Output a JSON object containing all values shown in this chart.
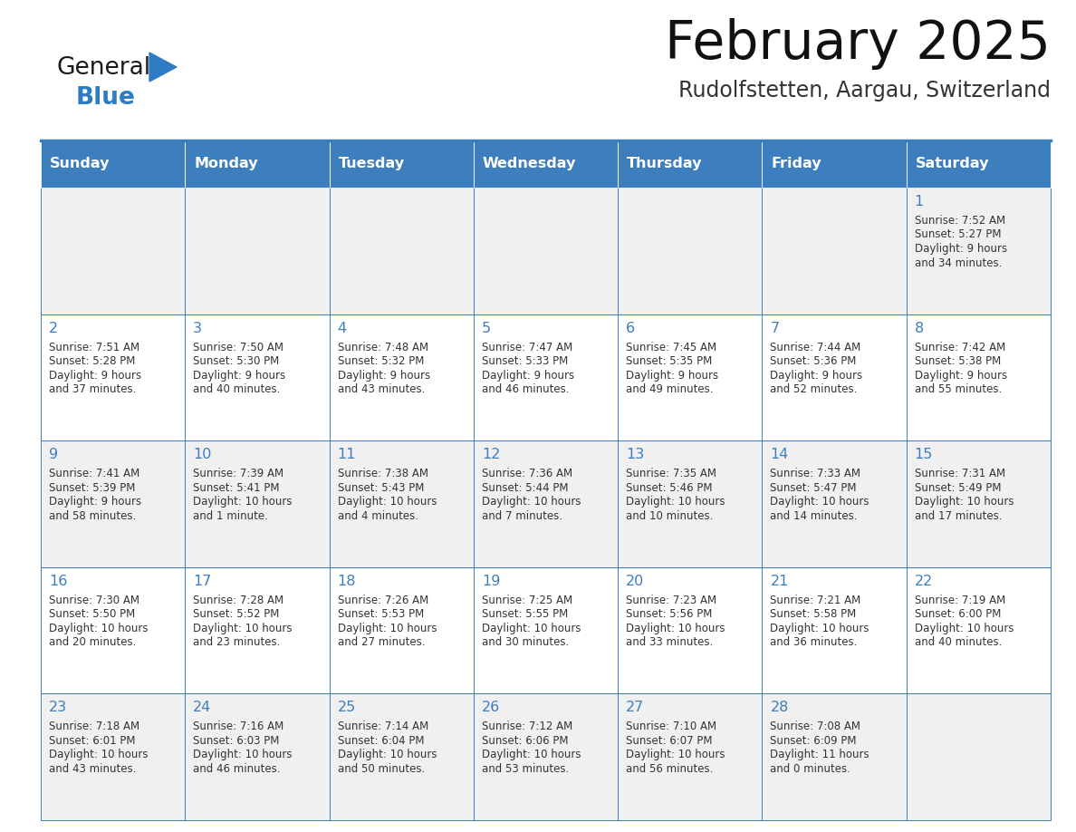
{
  "title": "February 2025",
  "subtitle": "Rudolfstetten, Aargau, Switzerland",
  "days_of_week": [
    "Sunday",
    "Monday",
    "Tuesday",
    "Wednesday",
    "Thursday",
    "Friday",
    "Saturday"
  ],
  "header_bg": "#3d7ebf",
  "header_text": "#ffffff",
  "cell_bg_gray": "#f0f0f0",
  "cell_bg_white": "#ffffff",
  "border_color": "#3d7ebf",
  "text_color": "#333333",
  "day_number_color": "#3d7ebf",
  "logo_general_color": "#1a1a1a",
  "logo_blue_color": "#2e7cc4",
  "calendar_data": [
    [
      {
        "day": null
      },
      {
        "day": null
      },
      {
        "day": null
      },
      {
        "day": null
      },
      {
        "day": null
      },
      {
        "day": null
      },
      {
        "day": 1,
        "sunrise": "7:52 AM",
        "sunset": "5:27 PM",
        "daylight": "9 hours",
        "daylight2": "and 34 minutes."
      }
    ],
    [
      {
        "day": 2,
        "sunrise": "7:51 AM",
        "sunset": "5:28 PM",
        "daylight": "9 hours",
        "daylight2": "and 37 minutes."
      },
      {
        "day": 3,
        "sunrise": "7:50 AM",
        "sunset": "5:30 PM",
        "daylight": "9 hours",
        "daylight2": "and 40 minutes."
      },
      {
        "day": 4,
        "sunrise": "7:48 AM",
        "sunset": "5:32 PM",
        "daylight": "9 hours",
        "daylight2": "and 43 minutes."
      },
      {
        "day": 5,
        "sunrise": "7:47 AM",
        "sunset": "5:33 PM",
        "daylight": "9 hours",
        "daylight2": "and 46 minutes."
      },
      {
        "day": 6,
        "sunrise": "7:45 AM",
        "sunset": "5:35 PM",
        "daylight": "9 hours",
        "daylight2": "and 49 minutes."
      },
      {
        "day": 7,
        "sunrise": "7:44 AM",
        "sunset": "5:36 PM",
        "daylight": "9 hours",
        "daylight2": "and 52 minutes."
      },
      {
        "day": 8,
        "sunrise": "7:42 AM",
        "sunset": "5:38 PM",
        "daylight": "9 hours",
        "daylight2": "and 55 minutes."
      }
    ],
    [
      {
        "day": 9,
        "sunrise": "7:41 AM",
        "sunset": "5:39 PM",
        "daylight": "9 hours",
        "daylight2": "and 58 minutes."
      },
      {
        "day": 10,
        "sunrise": "7:39 AM",
        "sunset": "5:41 PM",
        "daylight": "10 hours",
        "daylight2": "and 1 minute."
      },
      {
        "day": 11,
        "sunrise": "7:38 AM",
        "sunset": "5:43 PM",
        "daylight": "10 hours",
        "daylight2": "and 4 minutes."
      },
      {
        "day": 12,
        "sunrise": "7:36 AM",
        "sunset": "5:44 PM",
        "daylight": "10 hours",
        "daylight2": "and 7 minutes."
      },
      {
        "day": 13,
        "sunrise": "7:35 AM",
        "sunset": "5:46 PM",
        "daylight": "10 hours",
        "daylight2": "and 10 minutes."
      },
      {
        "day": 14,
        "sunrise": "7:33 AM",
        "sunset": "5:47 PM",
        "daylight": "10 hours",
        "daylight2": "and 14 minutes."
      },
      {
        "day": 15,
        "sunrise": "7:31 AM",
        "sunset": "5:49 PM",
        "daylight": "10 hours",
        "daylight2": "and 17 minutes."
      }
    ],
    [
      {
        "day": 16,
        "sunrise": "7:30 AM",
        "sunset": "5:50 PM",
        "daylight": "10 hours",
        "daylight2": "and 20 minutes."
      },
      {
        "day": 17,
        "sunrise": "7:28 AM",
        "sunset": "5:52 PM",
        "daylight": "10 hours",
        "daylight2": "and 23 minutes."
      },
      {
        "day": 18,
        "sunrise": "7:26 AM",
        "sunset": "5:53 PM",
        "daylight": "10 hours",
        "daylight2": "and 27 minutes."
      },
      {
        "day": 19,
        "sunrise": "7:25 AM",
        "sunset": "5:55 PM",
        "daylight": "10 hours",
        "daylight2": "and 30 minutes."
      },
      {
        "day": 20,
        "sunrise": "7:23 AM",
        "sunset": "5:56 PM",
        "daylight": "10 hours",
        "daylight2": "and 33 minutes."
      },
      {
        "day": 21,
        "sunrise": "7:21 AM",
        "sunset": "5:58 PM",
        "daylight": "10 hours",
        "daylight2": "and 36 minutes."
      },
      {
        "day": 22,
        "sunrise": "7:19 AM",
        "sunset": "6:00 PM",
        "daylight": "10 hours",
        "daylight2": "and 40 minutes."
      }
    ],
    [
      {
        "day": 23,
        "sunrise": "7:18 AM",
        "sunset": "6:01 PM",
        "daylight": "10 hours",
        "daylight2": "and 43 minutes."
      },
      {
        "day": 24,
        "sunrise": "7:16 AM",
        "sunset": "6:03 PM",
        "daylight": "10 hours",
        "daylight2": "and 46 minutes."
      },
      {
        "day": 25,
        "sunrise": "7:14 AM",
        "sunset": "6:04 PM",
        "daylight": "10 hours",
        "daylight2": "and 50 minutes."
      },
      {
        "day": 26,
        "sunrise": "7:12 AM",
        "sunset": "6:06 PM",
        "daylight": "10 hours",
        "daylight2": "and 53 minutes."
      },
      {
        "day": 27,
        "sunrise": "7:10 AM",
        "sunset": "6:07 PM",
        "daylight": "10 hours",
        "daylight2": "and 56 minutes."
      },
      {
        "day": 28,
        "sunrise": "7:08 AM",
        "sunset": "6:09 PM",
        "daylight": "11 hours",
        "daylight2": "and 0 minutes."
      },
      {
        "day": null
      }
    ]
  ]
}
